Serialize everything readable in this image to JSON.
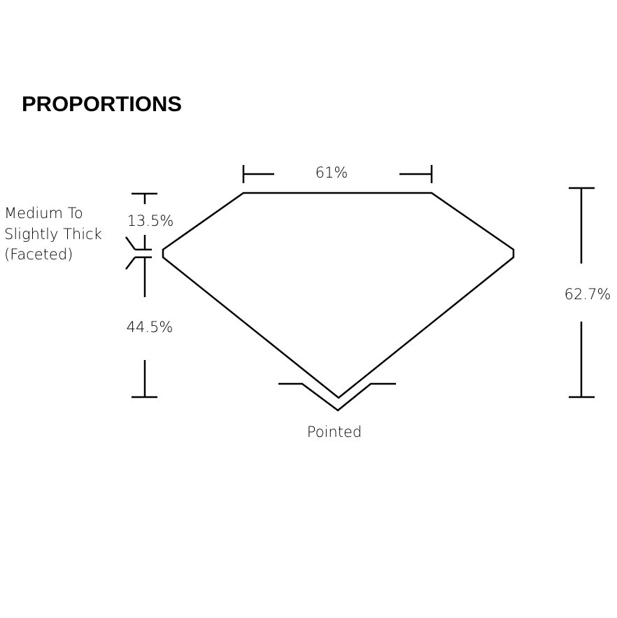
{
  "title": "PROPORTIONS",
  "labels": {
    "table": "61%",
    "crown": "13.5%",
    "pavilion": "44.5%",
    "depth": "62.7%",
    "girdle_line1": "Medium To",
    "girdle_line2": "Slightly Thick",
    "girdle_line3": "(Faceted)",
    "culet": "Pointed"
  },
  "colors": {
    "stroke": "#000000",
    "background": "#ffffff"
  }
}
